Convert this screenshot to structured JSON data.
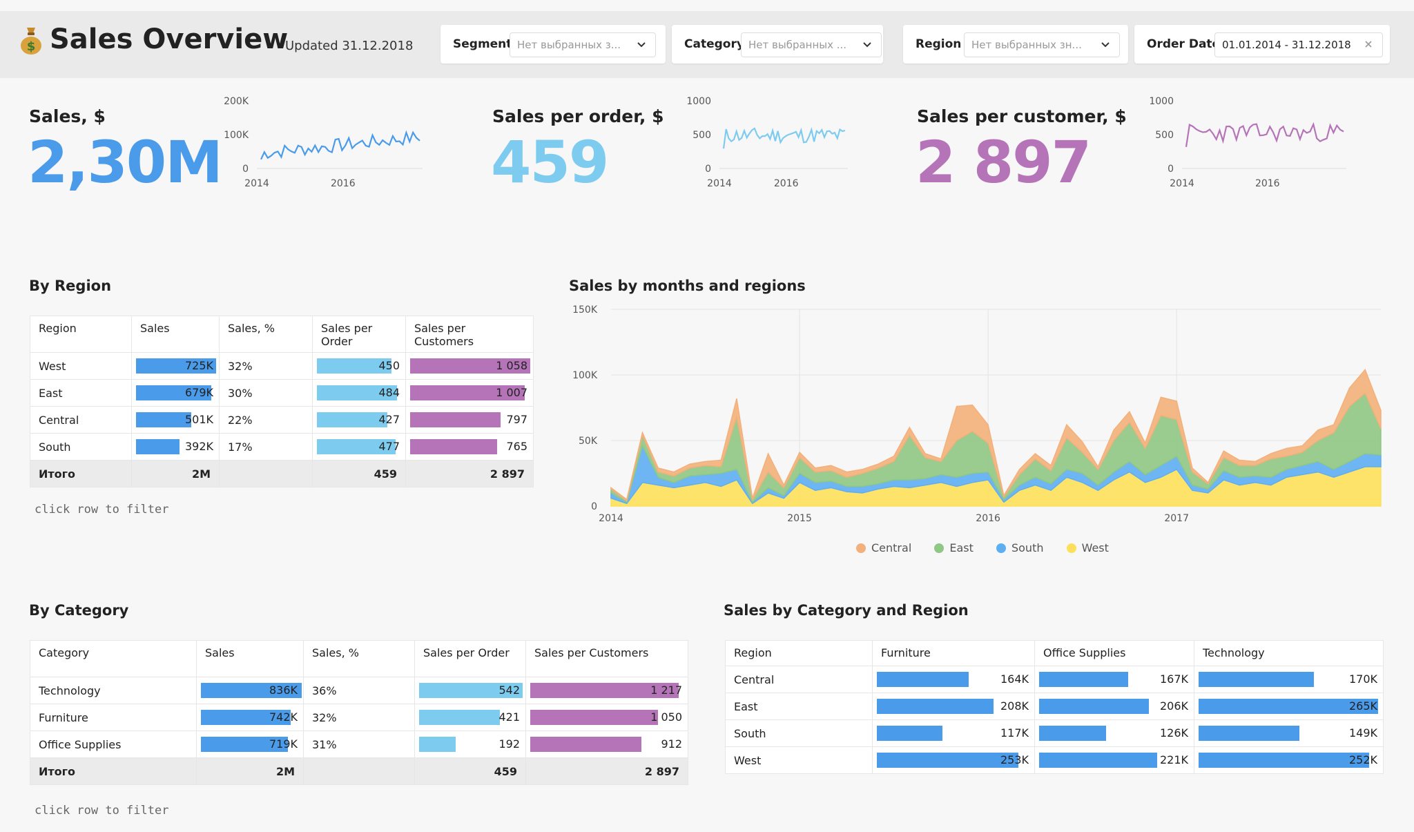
{
  "header": {
    "logo_icon": "money-bag-icon",
    "title": "Sales Overview",
    "updated": "Updated 31.12.2018",
    "filters": [
      {
        "label": "Segment",
        "value": "Нет выбранных з...",
        "type": "select"
      },
      {
        "label": "Category",
        "value": "Нет выбранных ...",
        "type": "select"
      },
      {
        "label": "Region",
        "value": "Нет выбранных зн...",
        "type": "select"
      },
      {
        "label": "Order Date",
        "value": "01.01.2014 - 31.12.2018",
        "type": "daterange"
      }
    ]
  },
  "kpis": [
    {
      "label": "Sales, $",
      "value": "2,30M",
      "color": "#4a9bea",
      "spark_ticks_y": [
        "200K",
        "100K",
        "0"
      ],
      "spark_ticks_x": [
        "2014",
        "2016"
      ]
    },
    {
      "label": "Sales per order, $",
      "value": "459",
      "color": "#7ecbf0",
      "spark_ticks_y": [
        "1000",
        "500",
        "0"
      ],
      "spark_ticks_x": [
        "2014",
        "2016"
      ]
    },
    {
      "label": "Sales per customer, $",
      "value": "2 897",
      "color": "#b574b8",
      "spark_ticks_y": [
        "1000",
        "500",
        "0"
      ],
      "spark_ticks_x": [
        "2014",
        "2016"
      ]
    }
  ],
  "by_region": {
    "title": "By Region",
    "columns": [
      "Region",
      "Sales",
      "Sales, %",
      "Sales per Order",
      "Sales per Customers"
    ],
    "rows": [
      {
        "name": "West",
        "sales": "725K",
        "sales_n": 725,
        "pct": "32%",
        "spo": "450",
        "spo_n": 450,
        "spc": "1 058",
        "spc_n": 1058
      },
      {
        "name": "East",
        "sales": "679K",
        "sales_n": 679,
        "pct": "30%",
        "spo": "484",
        "spo_n": 484,
        "spc": "1 007",
        "spc_n": 1007
      },
      {
        "name": "Central",
        "sales": "501K",
        "sales_n": 501,
        "pct": "22%",
        "spo": "427",
        "spo_n": 427,
        "spc": "797",
        "spc_n": 797
      },
      {
        "name": "South",
        "sales": "392K",
        "sales_n": 392,
        "pct": "17%",
        "spo": "477",
        "spo_n": 477,
        "spc": "765",
        "spc_n": 765
      }
    ],
    "total": {
      "name": "Итого",
      "sales": "2M",
      "spo": "459",
      "spc": "2 897"
    },
    "hint": "click row to filter"
  },
  "by_category": {
    "title": "By Category",
    "columns": [
      "Category",
      "Sales",
      "Sales, %",
      "Sales per Order",
      "Sales per Customers"
    ],
    "rows": [
      {
        "name": "Technology",
        "sales": "836K",
        "sales_n": 836,
        "pct": "36%",
        "spo": "542",
        "spo_n": 542,
        "spc": "1 217",
        "spc_n": 1217
      },
      {
        "name": "Furniture",
        "sales": "742K",
        "sales_n": 742,
        "pct": "32%",
        "spo": "421",
        "spo_n": 421,
        "spc": "1 050",
        "spc_n": 1050
      },
      {
        "name": "Office Supplies",
        "sales": "719K",
        "sales_n": 719,
        "pct": "31%",
        "spo": "192",
        "spo_n": 192,
        "spc": "912",
        "spc_n": 912
      }
    ],
    "total": {
      "name": "Итого",
      "sales": "2M",
      "spo": "459",
      "spc": "2 897"
    },
    "hint": "click row to filter"
  },
  "by_cat_region": {
    "title": "Sales by Category and Region",
    "columns": [
      "Region",
      "Furniture",
      "Office Supplies",
      "Technology"
    ],
    "rows": [
      {
        "name": "Central",
        "vals": [
          "164K",
          "167K",
          "170K"
        ],
        "nums": [
          164,
          167,
          170
        ]
      },
      {
        "name": "East",
        "vals": [
          "208K",
          "206K",
          "265K"
        ],
        "nums": [
          208,
          206,
          265
        ]
      },
      {
        "name": "South",
        "vals": [
          "117K",
          "126K",
          "149K"
        ],
        "nums": [
          117,
          126,
          149
        ]
      },
      {
        "name": "West",
        "vals": [
          "253K",
          "221K",
          "252K"
        ],
        "nums": [
          253,
          221,
          252
        ]
      }
    ]
  },
  "colors": {
    "sales": "#4a9bea",
    "per_order": "#7ecbf0",
    "per_customer": "#b574b8"
  },
  "chart_data": {
    "type": "area",
    "title": "Sales by months and regions",
    "ylim": [
      0,
      150000
    ],
    "y_ticks": [
      "150K",
      "100K",
      "50K",
      "0"
    ],
    "x_ticks": [
      "2014",
      "2015",
      "2016",
      "2017"
    ],
    "legend_position": "bottom",
    "stacked": true,
    "series": [
      {
        "name": "West",
        "color": "#fde05a",
        "values": [
          6,
          2,
          18,
          16,
          14,
          16,
          18,
          15,
          20,
          2,
          10,
          6,
          18,
          12,
          14,
          11,
          10,
          13,
          15,
          14,
          16,
          18,
          15,
          18,
          20,
          3,
          12,
          16,
          12,
          22,
          18,
          12,
          20,
          26,
          18,
          22,
          28,
          12,
          10,
          20,
          16,
          18,
          16,
          22,
          24,
          26,
          22,
          26,
          30,
          30
        ]
      },
      {
        "name": "South",
        "color": "#5eaef2",
        "values": [
          4,
          1,
          28,
          6,
          4,
          7,
          6,
          10,
          8,
          1,
          4,
          2,
          7,
          6,
          5,
          4,
          5,
          4,
          5,
          6,
          5,
          6,
          7,
          7,
          6,
          2,
          4,
          6,
          5,
          6,
          7,
          4,
          6,
          8,
          6,
          9,
          10,
          4,
          3,
          7,
          6,
          5,
          6,
          6,
          7,
          8,
          6,
          8,
          10,
          9
        ]
      },
      {
        "name": "East",
        "color": "#8fc784",
        "values": [
          3,
          1,
          8,
          4,
          5,
          6,
          7,
          5,
          40,
          2,
          12,
          6,
          12,
          8,
          8,
          7,
          10,
          12,
          14,
          34,
          16,
          10,
          28,
          32,
          22,
          2,
          8,
          14,
          10,
          24,
          16,
          12,
          24,
          30,
          20,
          38,
          28,
          10,
          4,
          10,
          9,
          8,
          14,
          10,
          10,
          16,
          28,
          42,
          46,
          20
        ]
      },
      {
        "name": "Central",
        "color": "#f3b07a",
        "values": [
          1,
          1,
          2,
          3,
          3,
          3,
          3,
          5,
          14,
          1,
          14,
          2,
          4,
          3,
          4,
          4,
          3,
          3,
          4,
          6,
          3,
          2,
          26,
          20,
          14,
          1,
          4,
          4,
          4,
          10,
          8,
          2,
          8,
          8,
          4,
          14,
          14,
          3,
          1,
          5,
          4,
          3,
          4,
          6,
          5,
          8,
          6,
          14,
          18,
          14
        ]
      }
    ]
  }
}
